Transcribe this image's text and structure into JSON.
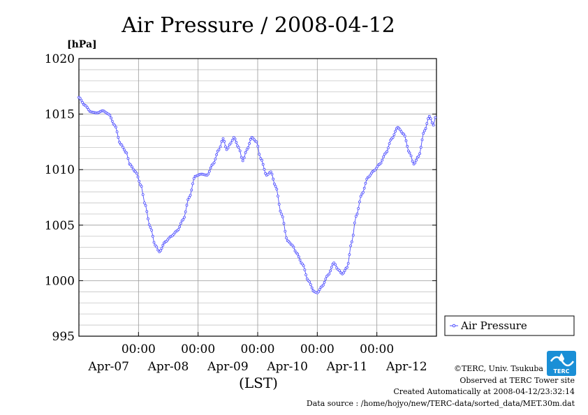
{
  "chart_data": {
    "type": "line",
    "title": "Air Pressure / 2008-04-12",
    "ylabel": "[hPa]",
    "xlabel": "(LST)",
    "ylim": [
      995,
      1020
    ],
    "yticks": [
      995,
      1000,
      1005,
      1010,
      1015,
      1020
    ],
    "xlim_days": [
      -0.5,
      5.5
    ],
    "xticks": [
      {
        "day": 0.5,
        "time": "00:00",
        "date": ""
      },
      {
        "day": 1.5,
        "time": "00:00",
        "date": ""
      },
      {
        "day": 2.5,
        "time": "00:00",
        "date": ""
      },
      {
        "day": 3.5,
        "time": "00:00",
        "date": ""
      },
      {
        "day": 4.5,
        "time": "00:00",
        "date": ""
      }
    ],
    "date_labels": [
      {
        "day": 0.0,
        "text": "Apr-07"
      },
      {
        "day": 1.0,
        "text": "Apr-08"
      },
      {
        "day": 2.0,
        "text": "Apr-09"
      },
      {
        "day": 3.0,
        "text": "Apr-10"
      },
      {
        "day": 4.0,
        "text": "Apr-11"
      },
      {
        "day": 5.0,
        "text": "Apr-12"
      }
    ],
    "grid": true,
    "legend": "right",
    "series": [
      {
        "name": "Air Pressure",
        "color": "#4b4bff",
        "points": [
          [
            -0.5,
            1016.5
          ],
          [
            -0.4,
            1015.8
          ],
          [
            -0.3,
            1015.2
          ],
          [
            -0.2,
            1015.1
          ],
          [
            -0.1,
            1015.3
          ],
          [
            0.0,
            1015.0
          ],
          [
            0.1,
            1014.0
          ],
          [
            0.2,
            1012.3
          ],
          [
            0.3,
            1011.5
          ],
          [
            0.35,
            1010.5
          ],
          [
            0.45,
            1009.8
          ],
          [
            0.55,
            1008.5
          ],
          [
            0.6,
            1007.0
          ],
          [
            0.7,
            1004.8
          ],
          [
            0.78,
            1003.2
          ],
          [
            0.85,
            1002.6
          ],
          [
            0.95,
            1003.5
          ],
          [
            1.05,
            1004.0
          ],
          [
            1.15,
            1004.5
          ],
          [
            1.25,
            1005.5
          ],
          [
            1.35,
            1007.5
          ],
          [
            1.45,
            1009.4
          ],
          [
            1.55,
            1009.6
          ],
          [
            1.65,
            1009.5
          ],
          [
            1.75,
            1010.5
          ],
          [
            1.85,
            1011.8
          ],
          [
            1.92,
            1012.8
          ],
          [
            1.98,
            1011.8
          ],
          [
            2.05,
            1012.4
          ],
          [
            2.1,
            1012.9
          ],
          [
            2.18,
            1012.0
          ],
          [
            2.25,
            1010.8
          ],
          [
            2.32,
            1011.8
          ],
          [
            2.4,
            1012.9
          ],
          [
            2.48,
            1012.5
          ],
          [
            2.55,
            1011.0
          ],
          [
            2.65,
            1009.5
          ],
          [
            2.72,
            1009.8
          ],
          [
            2.8,
            1008.5
          ],
          [
            2.9,
            1006.0
          ],
          [
            3.0,
            1003.6
          ],
          [
            3.08,
            1003.2
          ],
          [
            3.15,
            1002.5
          ],
          [
            3.25,
            1001.5
          ],
          [
            3.35,
            1000.0
          ],
          [
            3.45,
            999.0
          ],
          [
            3.5,
            998.9
          ],
          [
            3.58,
            999.5
          ],
          [
            3.68,
            1000.5
          ],
          [
            3.78,
            1001.6
          ],
          [
            3.85,
            1001.0
          ],
          [
            3.92,
            1000.6
          ],
          [
            4.0,
            1001.2
          ],
          [
            4.08,
            1003.5
          ],
          [
            4.15,
            1005.8
          ],
          [
            4.25,
            1007.8
          ],
          [
            4.35,
            1009.3
          ],
          [
            4.45,
            1009.9
          ],
          [
            4.55,
            1010.5
          ],
          [
            4.65,
            1011.5
          ],
          [
            4.75,
            1012.8
          ],
          [
            4.85,
            1013.8
          ],
          [
            4.95,
            1013.2
          ],
          [
            5.05,
            1011.5
          ],
          [
            5.12,
            1010.5
          ],
          [
            5.2,
            1011.2
          ],
          [
            5.3,
            1013.5
          ],
          [
            5.38,
            1014.8
          ],
          [
            5.45,
            1014.0
          ],
          [
            5.48,
            1014.7
          ]
        ]
      }
    ]
  },
  "credits": {
    "copyright": "©TERC, Univ. Tsukuba",
    "observed": "Observed at TERC Tower site",
    "created": "Created Automatically at 2008-04-12/23:32:14",
    "source": "Data source : /home/hojyo/new/TERC-data/sorted_data/MET.30m.dat"
  },
  "logo": {
    "text": "TERC",
    "color": "#1a8fd6"
  }
}
